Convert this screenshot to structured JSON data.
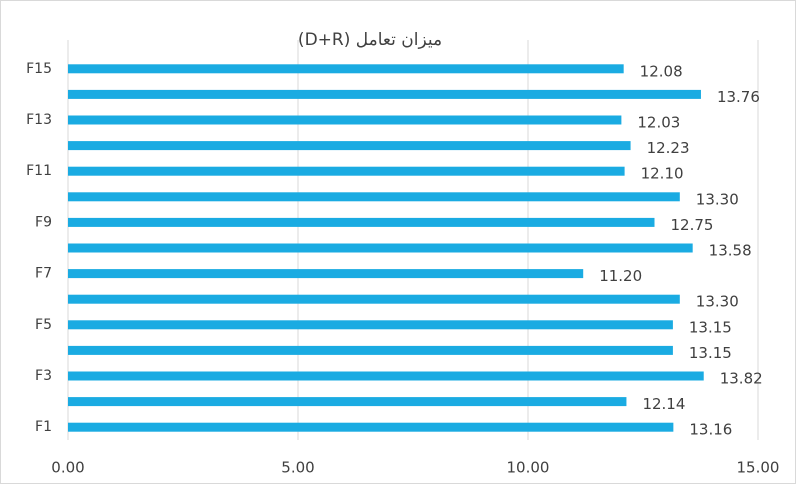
{
  "chart_data": {
    "type": "bar",
    "orientation": "horizontal",
    "title": "میزان تعامل (D+R)",
    "categories": [
      "F1",
      null,
      "F3",
      null,
      "F5",
      null,
      "F7",
      null,
      "F9",
      null,
      "F11",
      null,
      "F13",
      null,
      "F15"
    ],
    "values": [
      13.16,
      12.14,
      13.82,
      13.15,
      13.15,
      13.3,
      11.2,
      13.58,
      12.75,
      13.3,
      12.1,
      12.23,
      12.03,
      13.76,
      12.08
    ],
    "value_labels": [
      "13.16",
      "12.14",
      "13.82",
      "13.15",
      "13.15",
      "13.30",
      "11.20",
      "13.58",
      "12.75",
      "13.30",
      "12.10",
      "12.23",
      "12.03",
      "13.76",
      "12.08"
    ],
    "color": "#1aabe2",
    "xlim": [
      0,
      15
    ],
    "xticks": [
      {
        "value": 0,
        "label": "0.00"
      },
      {
        "value": 5,
        "label": "5.00"
      },
      {
        "value": 10,
        "label": "10.00"
      },
      {
        "value": 15,
        "label": "15.00"
      }
    ],
    "grid": true
  }
}
